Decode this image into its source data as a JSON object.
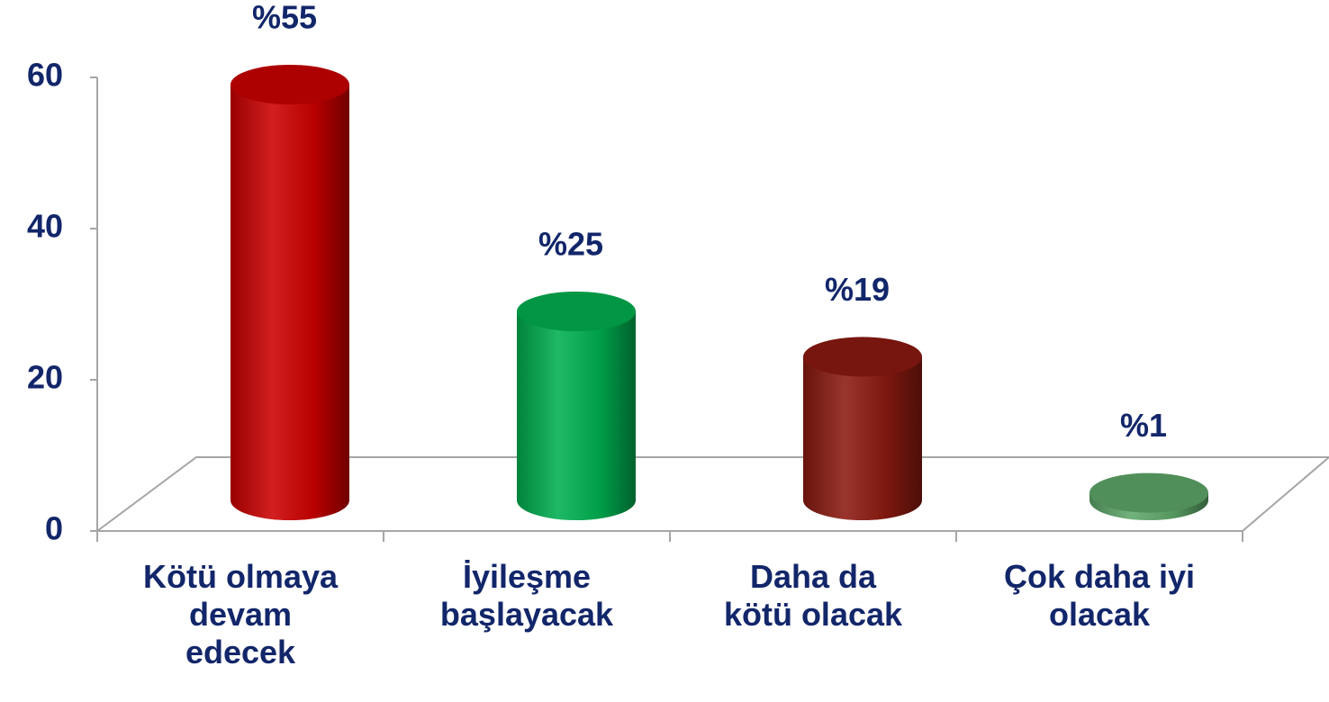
{
  "chart_data": {
    "type": "bar",
    "categories": [
      "Kötü olmaya\ndevam\nedecek",
      "İyileşme\nbaşlayacak",
      "Daha da\nkötü olacak",
      "Çok daha iyi\nolacak"
    ],
    "values": [
      55,
      25,
      19,
      1
    ],
    "value_labels": [
      "%55",
      "%25",
      "%19",
      "%1"
    ],
    "colors": [
      "#cc0000",
      "#00b050",
      "#8b1a10",
      "#5fa86a"
    ],
    "ylim": [
      0,
      60
    ],
    "yticks": [
      0,
      20,
      40,
      60
    ]
  }
}
